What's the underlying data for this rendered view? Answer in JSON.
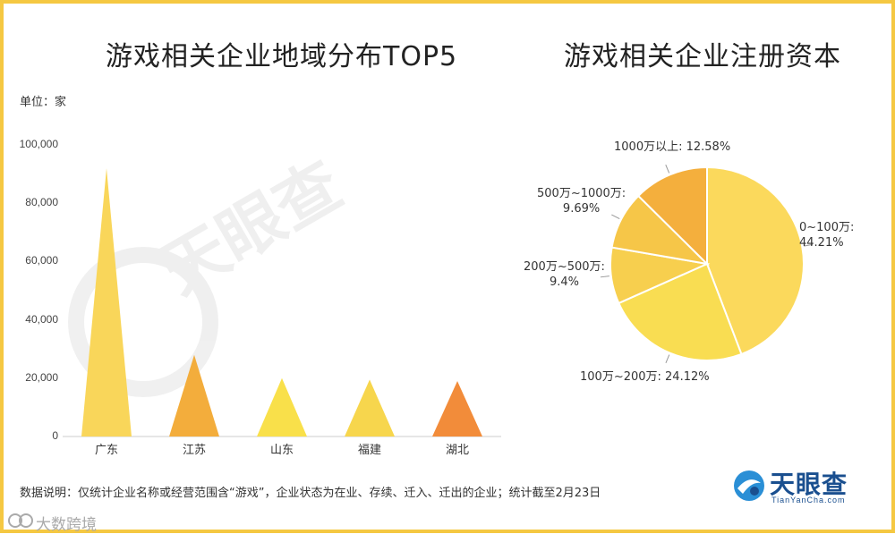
{
  "titles": {
    "bar": "游戏相关企业地域分布TOP5",
    "pie": "游戏相关企业注册资本"
  },
  "unit_label": "单位：家",
  "note": "数据说明：仅统计企业名称或经营范围含“游戏”，企业状态为在业、存续、迁入、迁出的企业；统计截至2月23日",
  "brand": {
    "name": "天眼查",
    "url": "TianYanCha.com"
  },
  "source_watermark": "大数跨境",
  "background_watermark": "天眼查 TianYanCha.com",
  "colors": {
    "frame": "#f5c842",
    "bars": [
      "#f9d65a",
      "#f3ad3c",
      "#f9e04a",
      "#f7d64d",
      "#f28c3a"
    ],
    "pie": [
      "#fbd95c",
      "#f9dd52",
      "#f7cf4e",
      "#f6c648",
      "#f4af3d"
    ],
    "brand": "#1a4f8f"
  },
  "chart_data": [
    {
      "type": "bar",
      "title": "游戏相关企业地域分布TOP5",
      "ylabel": "单位：家",
      "categories": [
        "广东",
        "江苏",
        "山东",
        "福建",
        "湖北"
      ],
      "values": [
        92000,
        28000,
        20000,
        19500,
        19000
      ],
      "ylim": [
        0,
        100000
      ],
      "yticks": [
        0,
        20000,
        40000,
        60000,
        80000,
        100000
      ],
      "ytick_labels": [
        "0",
        "20,000",
        "40,000",
        "60,000",
        "80,000",
        "100,000"
      ],
      "grid": false,
      "legend": "none"
    },
    {
      "type": "pie",
      "title": "游戏相关企业注册资本",
      "slices": [
        {
          "label": "0~100万",
          "value": 44.21,
          "display": "0~100万:\n44.21%"
        },
        {
          "label": "100万~200万",
          "value": 24.12,
          "display": "100万~200万: 24.12%"
        },
        {
          "label": "200万~500万",
          "value": 9.4,
          "display": "200万~500万:\n9.4%"
        },
        {
          "label": "500万~1000万",
          "value": 9.69,
          "display": "500万~1000万:\n9.69%"
        },
        {
          "label": "1000万以上",
          "value": 12.58,
          "display": "1000万以上: 12.58%"
        }
      ],
      "legend": "none"
    }
  ]
}
